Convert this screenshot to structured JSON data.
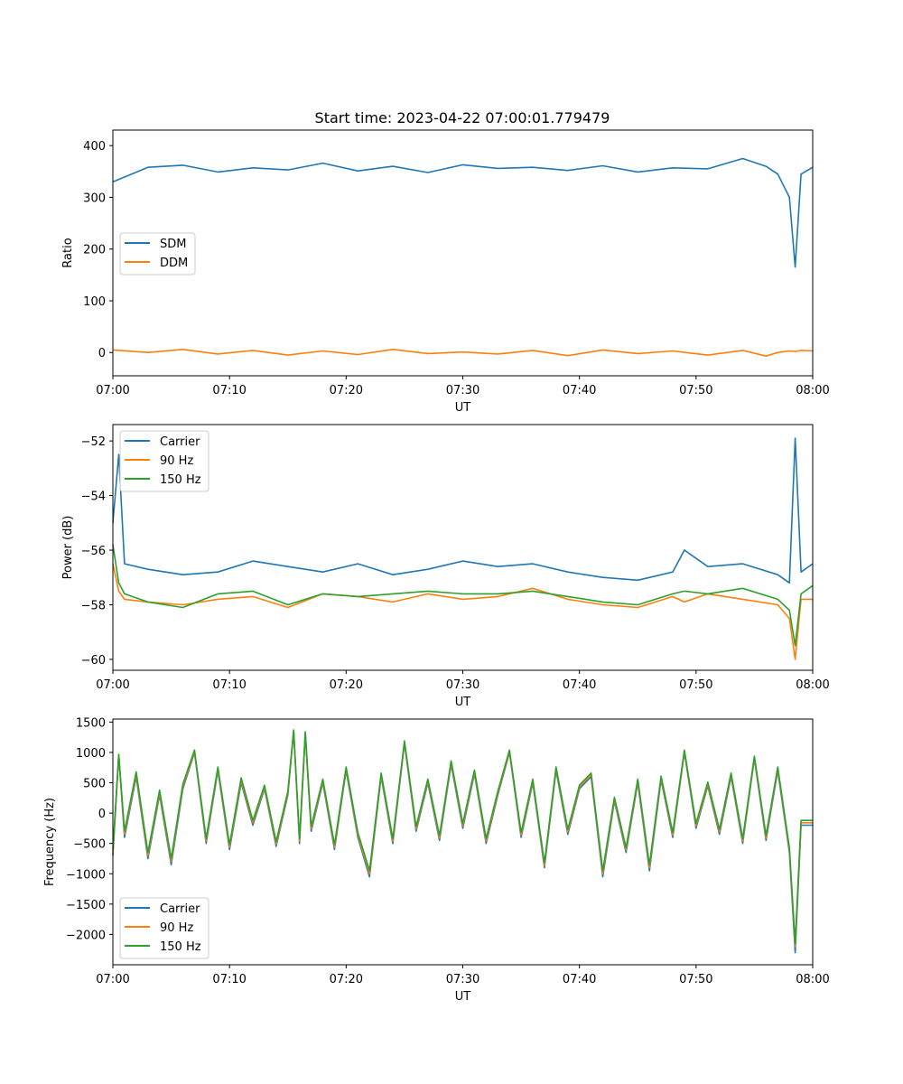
{
  "figure": {
    "title": "Start time: 2023-04-22 07:00:01.779479",
    "colors": {
      "blue": "#1f77b4",
      "orange": "#ff7f0e",
      "green": "#2ca02c"
    }
  },
  "chart_data": [
    {
      "type": "line",
      "title": "Start time: 2023-04-22 07:00:01.779479",
      "xlabel": "UT",
      "ylabel": "Ratio",
      "xlim": [
        "07:00",
        "08:00"
      ],
      "ylim": [
        -45,
        430
      ],
      "xticks": [
        "07:00",
        "07:10",
        "07:20",
        "07:30",
        "07:40",
        "07:50",
        "08:00"
      ],
      "yticks": [
        0,
        100,
        200,
        300,
        400
      ],
      "ytick_labels": [
        "0",
        "100",
        "200",
        "300",
        "400"
      ],
      "legend": "center-left",
      "grid": false,
      "x": [
        "07:00",
        "07:03",
        "07:06",
        "07:09",
        "07:12",
        "07:15",
        "07:18",
        "07:21",
        "07:24",
        "07:27",
        "07:30",
        "07:33",
        "07:36",
        "07:39",
        "07:42",
        "07:45",
        "07:48",
        "07:51",
        "07:54",
        "07:56",
        "07:57",
        "07:58",
        "07:58.5",
        "07:59",
        "08:00"
      ],
      "series": [
        {
          "name": "SDM",
          "color": "#1f77b4",
          "values": [
            330,
            358,
            362,
            349,
            357,
            353,
            366,
            351,
            360,
            348,
            363,
            356,
            358,
            352,
            361,
            349,
            357,
            355,
            375,
            360,
            345,
            300,
            165,
            345,
            358
          ]
        },
        {
          "name": "DDM",
          "color": "#ff7f0e",
          "values": [
            5,
            0,
            6,
            -3,
            4,
            -5,
            3,
            -4,
            6,
            -2,
            1,
            -3,
            4,
            -6,
            5,
            -2,
            3,
            -5,
            4,
            -7,
            0,
            3,
            2,
            4,
            3
          ]
        }
      ]
    },
    {
      "type": "line",
      "xlabel": "UT",
      "ylabel": "Power (dB)",
      "xlim": [
        "07:00",
        "08:00"
      ],
      "ylim": [
        -60.4,
        -51.4
      ],
      "xticks": [
        "07:00",
        "07:10",
        "07:20",
        "07:30",
        "07:40",
        "07:50",
        "08:00"
      ],
      "yticks": [
        -60,
        -58,
        -56,
        -54,
        -52
      ],
      "ytick_labels": [
        "−60",
        "−58",
        "−56",
        "−54",
        "−52"
      ],
      "legend": "top-left",
      "grid": false,
      "x": [
        "07:00",
        "07:00.5",
        "07:01",
        "07:03",
        "07:06",
        "07:09",
        "07:12",
        "07:15",
        "07:18",
        "07:21",
        "07:24",
        "07:27",
        "07:30",
        "07:33",
        "07:36",
        "07:39",
        "07:42",
        "07:45",
        "07:48",
        "07:49",
        "07:51",
        "07:54",
        "07:57",
        "07:58",
        "07:58.5",
        "07:59",
        "08:00"
      ],
      "series": [
        {
          "name": "Carrier",
          "color": "#1f77b4",
          "values": [
            -55.0,
            -52.5,
            -56.5,
            -56.7,
            -56.9,
            -56.8,
            -56.4,
            -56.6,
            -56.8,
            -56.5,
            -56.9,
            -56.7,
            -56.4,
            -56.6,
            -56.5,
            -56.8,
            -57.0,
            -57.1,
            -56.8,
            -56.0,
            -56.6,
            -56.5,
            -56.9,
            -57.2,
            -51.9,
            -56.8,
            -56.5
          ]
        },
        {
          "name": "90 Hz",
          "color": "#ff7f0e",
          "values": [
            -56.5,
            -57.5,
            -57.8,
            -57.9,
            -58.0,
            -57.8,
            -57.7,
            -58.1,
            -57.6,
            -57.7,
            -57.9,
            -57.6,
            -57.8,
            -57.7,
            -57.4,
            -57.8,
            -58.0,
            -58.1,
            -57.7,
            -57.9,
            -57.6,
            -57.8,
            -58.0,
            -58.5,
            -60.0,
            -57.8,
            -57.8
          ]
        },
        {
          "name": "150 Hz",
          "color": "#2ca02c",
          "values": [
            -55.8,
            -57.2,
            -57.6,
            -57.9,
            -58.1,
            -57.6,
            -57.5,
            -58.0,
            -57.6,
            -57.7,
            -57.6,
            -57.5,
            -57.6,
            -57.6,
            -57.5,
            -57.7,
            -57.9,
            -58.0,
            -57.6,
            -57.5,
            -57.6,
            -57.4,
            -57.8,
            -58.2,
            -59.5,
            -57.6,
            -57.3
          ]
        }
      ]
    },
    {
      "type": "line",
      "xlabel": "UT",
      "ylabel": "Frequency (Hz)",
      "xlim": [
        "07:00",
        "08:00"
      ],
      "ylim": [
        -2500,
        1550
      ],
      "xticks": [
        "07:00",
        "07:10",
        "07:20",
        "07:30",
        "07:40",
        "07:50",
        "08:00"
      ],
      "yticks": [
        -2000,
        -1500,
        -1000,
        -500,
        0,
        500,
        1000,
        1500
      ],
      "ytick_labels": [
        "−2000",
        "−1500",
        "−1000",
        "−500",
        "0",
        "500",
        "1000",
        "1500"
      ],
      "legend": "bottom-left",
      "grid": false,
      "x": [
        "07:00",
        "07:00.5",
        "07:01",
        "07:02",
        "07:03",
        "07:04",
        "07:05",
        "07:06",
        "07:07",
        "07:08",
        "07:09",
        "07:10",
        "07:11",
        "07:12",
        "07:13",
        "07:14",
        "07:15",
        "07:15.5",
        "07:16",
        "07:16.5",
        "07:17",
        "07:18",
        "07:19",
        "07:20",
        "07:21",
        "07:22",
        "07:23",
        "07:24",
        "07:25",
        "07:26",
        "07:27",
        "07:28",
        "07:29",
        "07:30",
        "07:31",
        "07:32",
        "07:33",
        "07:34",
        "07:35",
        "07:36",
        "07:37",
        "07:38",
        "07:39",
        "07:40",
        "07:41",
        "07:42",
        "07:43",
        "07:44",
        "07:45",
        "07:46",
        "07:47",
        "07:48",
        "07:49",
        "07:50",
        "07:51",
        "07:52",
        "07:53",
        "07:54",
        "07:55",
        "07:56",
        "07:57",
        "07:58",
        "07:58.5",
        "07:59",
        "08:00"
      ],
      "series": [
        {
          "name": "Carrier",
          "color": "#1f77b4",
          "values": [
            -700,
            950,
            -400,
            600,
            -750,
            300,
            -850,
            400,
            1000,
            -500,
            700,
            -600,
            500,
            -200,
            400,
            -550,
            300,
            1350,
            -500,
            1300,
            -300,
            500,
            -600,
            700,
            -400,
            -1050,
            600,
            -500,
            1150,
            -300,
            500,
            -450,
            800,
            -250,
            650,
            -500,
            300,
            1000,
            -400,
            500,
            -900,
            700,
            -350,
            400,
            600,
            -1050,
            200,
            -650,
            500,
            -950,
            550,
            -400,
            1000,
            -250,
            450,
            -350,
            600,
            -500,
            900,
            -450,
            700,
            -650,
            -2300,
            -200,
            -200
          ]
        },
        {
          "name": "90 Hz",
          "color": "#ff7f0e",
          "values": [
            -650,
            960,
            -350,
            640,
            -700,
            340,
            -800,
            440,
            1020,
            -460,
            730,
            -560,
            540,
            -160,
            430,
            -510,
            330,
            1360,
            -460,
            1320,
            -260,
            530,
            -560,
            730,
            -360,
            -1000,
            630,
            -460,
            1170,
            -260,
            530,
            -410,
            830,
            -210,
            680,
            -460,
            330,
            1020,
            -360,
            530,
            -860,
            730,
            -310,
            430,
            630,
            -1000,
            230,
            -610,
            530,
            -900,
            580,
            -360,
            1020,
            -210,
            480,
            -310,
            630,
            -460,
            920,
            -410,
            730,
            -610,
            -2200,
            -160,
            -160
          ]
        },
        {
          "name": "150 Hz",
          "color": "#2ca02c",
          "values": [
            -600,
            970,
            -300,
            680,
            -650,
            380,
            -750,
            480,
            1040,
            -420,
            760,
            -520,
            580,
            -120,
            460,
            -470,
            360,
            1370,
            -420,
            1340,
            -220,
            560,
            -520,
            760,
            -320,
            -950,
            660,
            -420,
            1190,
            -220,
            560,
            -370,
            860,
            -170,
            710,
            -420,
            360,
            1040,
            -320,
            560,
            -820,
            760,
            -270,
            460,
            660,
            -950,
            260,
            -570,
            560,
            -850,
            610,
            -320,
            1040,
            -170,
            510,
            -270,
            660,
            -420,
            940,
            -370,
            760,
            -570,
            -2150,
            -120,
            -120
          ]
        }
      ]
    }
  ]
}
